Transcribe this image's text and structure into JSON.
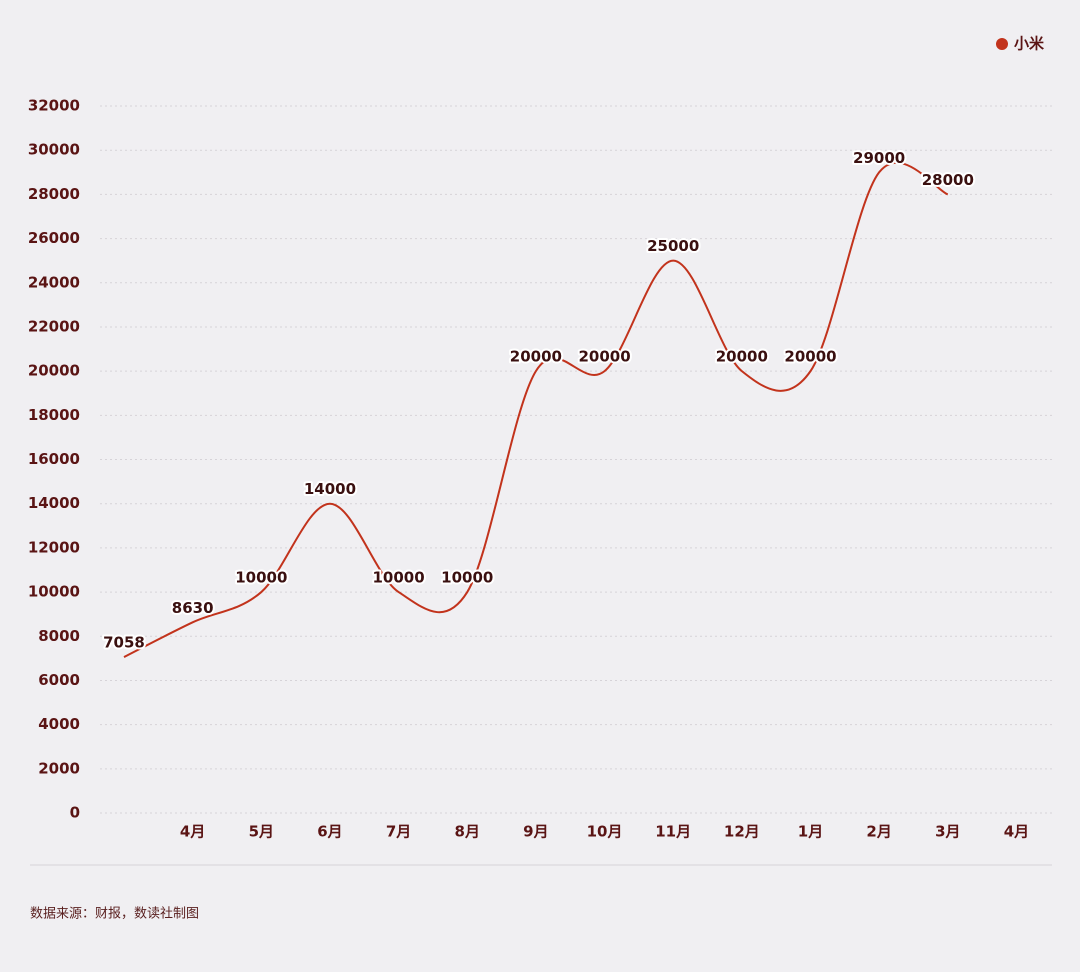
{
  "chart_data": {
    "type": "line",
    "categories": [
      null,
      "4月",
      "5月",
      "6月",
      "7月",
      "8月",
      "9月",
      "10月",
      "11月",
      "12月",
      "1月",
      "2月",
      "3月",
      "4月"
    ],
    "series": [
      {
        "name": "小米",
        "color": "#c2331c",
        "values": [
          7058,
          8630,
          10000,
          14000,
          10000,
          10000,
          20000,
          20000,
          25000,
          20000,
          20000,
          29000,
          28000,
          null
        ]
      }
    ],
    "ylim": [
      0,
      32000
    ],
    "yticks": [
      0,
      2000,
      4000,
      6000,
      8000,
      10000,
      12000,
      14000,
      16000,
      18000,
      20000,
      22000,
      24000,
      26000,
      28000,
      30000,
      32000
    ],
    "grid": true,
    "legend": "top-right",
    "smooth": true,
    "source": "数据来源：财报，数读社制图"
  }
}
